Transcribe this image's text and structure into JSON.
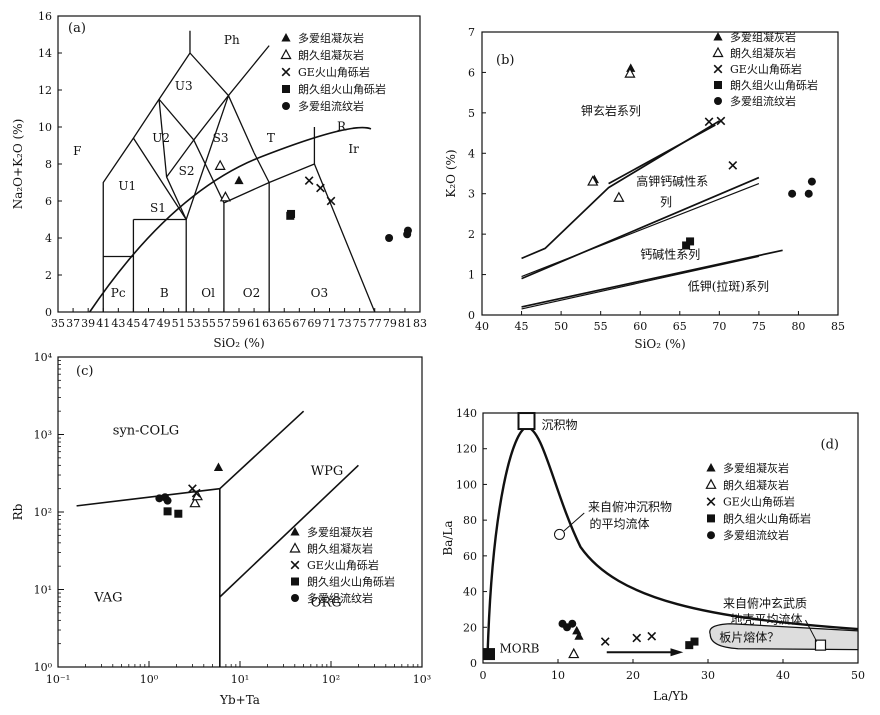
{
  "legend_entries": [
    "多爱组凝灰岩",
    "朗久组凝灰岩",
    "GE火山角砾岩",
    "朗久组火山角砾岩",
    "多爱组流纹岩"
  ],
  "colors": {
    "ink": "#111111",
    "slab_fill": "#dddddd"
  },
  "chart_data": [
    {
      "type": "scatter",
      "panel_label": "(a)",
      "xlabel": "SiO₂ (%)",
      "ylabel": "Na₂O+K₂O (%)",
      "xlim": [
        35,
        83
      ],
      "ylim": [
        0,
        16
      ],
      "xticks": [
        "35",
        "37",
        "39",
        "41",
        "43",
        "45",
        "47",
        "49",
        "51",
        "53",
        "55",
        "57",
        "59",
        "61",
        "63",
        "65",
        "67",
        "69",
        "71",
        "73",
        "75",
        "77",
        "79",
        "81",
        "83"
      ],
      "yticks": [
        "0",
        "2",
        "4",
        "6",
        "8",
        "10",
        "12",
        "14",
        "16"
      ],
      "field_labels": [
        "Ph",
        "U3",
        "U2",
        "S3",
        "F",
        "T",
        "R",
        "Ir",
        "S2",
        "U1",
        "S1",
        "Pc",
        "B",
        "Ol",
        "O2",
        "O3"
      ],
      "series": [
        {
          "name": "多爱组凝灰岩",
          "marker": "filled-triangle",
          "points": [
            [
              59.0,
              7.1
            ]
          ]
        },
        {
          "name": "朗久组凝灰岩",
          "marker": "open-triangle",
          "points": [
            [
              56.5,
              7.9
            ],
            [
              57.2,
              6.2
            ]
          ]
        },
        {
          "name": "GE火山角砾岩",
          "marker": "cross",
          "points": [
            [
              68.3,
              7.1
            ],
            [
              69.8,
              6.7
            ],
            [
              71.2,
              6.0
            ]
          ]
        },
        {
          "name": "朗久组火山角砾岩",
          "marker": "filled-square",
          "points": [
            [
              65.8,
              5.2
            ],
            [
              65.9,
              5.3
            ]
          ]
        },
        {
          "name": "多爱组流纹岩",
          "marker": "filled-circle",
          "points": [
            [
              78.9,
              4.0
            ],
            [
              81.3,
              4.2
            ],
            [
              81.4,
              4.4
            ]
          ]
        }
      ]
    },
    {
      "type": "scatter",
      "panel_label": "(b)",
      "xlabel": "SiO₂ (%)",
      "ylabel": "K₂O (%)",
      "xlim": [
        40,
        85
      ],
      "ylim": [
        0,
        7
      ],
      "xticks": [
        "40",
        "45",
        "50",
        "55",
        "60",
        "65",
        "70",
        "75",
        "80",
        "85"
      ],
      "yticks": [
        "0",
        "1",
        "2",
        "3",
        "4",
        "5",
        "6",
        "7"
      ],
      "field_labels": [
        "钾玄岩系列",
        "高钾钙碱性系",
        "列",
        "钙碱性系列",
        "低钾(拉斑)系列"
      ],
      "series": [
        {
          "name": "多爱组凝灰岩",
          "marker": "filled-triangle",
          "points": [
            [
              54.2,
              3.35
            ],
            [
              58.8,
              6.1
            ]
          ]
        },
        {
          "name": "朗久组凝灰岩",
          "marker": "open-triangle",
          "points": [
            [
              54.0,
              3.3
            ],
            [
              57.3,
              2.9
            ],
            [
              58.7,
              5.97
            ]
          ]
        },
        {
          "name": "GE火山角砾岩",
          "marker": "cross",
          "points": [
            [
              68.7,
              4.78
            ],
            [
              70.2,
              4.8
            ],
            [
              71.7,
              3.7
            ]
          ]
        },
        {
          "name": "朗久组火山角砾岩",
          "marker": "filled-square",
          "points": [
            [
              65.8,
              1.72
            ],
            [
              66.3,
              1.82
            ]
          ]
        },
        {
          "name": "多爱组流纹岩",
          "marker": "filled-circle",
          "points": [
            [
              79.2,
              3.0
            ],
            [
              81.3,
              3.0
            ],
            [
              81.7,
              3.3
            ]
          ]
        }
      ]
    },
    {
      "type": "scatter",
      "panel_label": "(c)",
      "xlabel": "Yb+Ta",
      "ylabel": "Rb",
      "xscale": "log",
      "yscale": "log",
      "xlim": [
        0.1,
        1000
      ],
      "ylim": [
        1,
        10000
      ],
      "xticks": [
        "10⁻¹",
        "10⁰",
        "10¹",
        "10²",
        "10³"
      ],
      "yticks": [
        "10⁰",
        "10¹",
        "10²",
        "10³",
        "10⁴"
      ],
      "field_labels": [
        "syn-COLG",
        "WPG",
        "VAG",
        "ORG"
      ],
      "series": [
        {
          "name": "多爱组凝灰岩",
          "marker": "filled-triangle",
          "points": [
            [
              5.8,
              375
            ]
          ]
        },
        {
          "name": "朗久组凝灰岩",
          "marker": "open-triangle",
          "points": [
            [
              3.2,
              130
            ],
            [
              3.4,
              160
            ]
          ]
        },
        {
          "name": "GE火山角砾岩",
          "marker": "cross",
          "points": [
            [
              3.0,
              200
            ],
            [
              3.3,
              175
            ]
          ]
        },
        {
          "name": "朗久组火山角砾岩",
          "marker": "filled-square",
          "points": [
            [
              1.6,
              102
            ],
            [
              2.1,
              95
            ]
          ]
        },
        {
          "name": "多爱组流纹岩",
          "marker": "filled-circle",
          "points": [
            [
              1.3,
              150
            ],
            [
              1.5,
              155
            ],
            [
              1.6,
              140
            ]
          ]
        }
      ]
    },
    {
      "type": "scatter",
      "panel_label": "(d)",
      "xlabel": "La/Yb",
      "ylabel": "Ba/La",
      "xlim": [
        0,
        50
      ],
      "ylim": [
        0,
        140
      ],
      "xticks": [
        "0",
        "10",
        "20",
        "30",
        "40",
        "50"
      ],
      "yticks": [
        "0",
        "20",
        "40",
        "60",
        "80",
        "100",
        "120",
        "140"
      ],
      "annotations": [
        "沉积物",
        "来自俯冲沉积物",
        "的平均流体",
        "MORB",
        "来自俯冲玄武质",
        "地壳平均流体",
        "板片熔体？"
      ],
      "series": [
        {
          "name": "多爱组凝灰岩",
          "marker": "filled-triangle",
          "points": [
            [
              12.5,
              18
            ],
            [
              12.8,
              15
            ]
          ]
        },
        {
          "name": "朗久组凝灰岩",
          "marker": "open-triangle",
          "points": [
            [
              12.1,
              5
            ]
          ]
        },
        {
          "name": "GE火山角砾岩",
          "marker": "cross",
          "points": [
            [
              16.3,
              12
            ],
            [
              20.5,
              14
            ],
            [
              22.5,
              15
            ]
          ]
        },
        {
          "name": "朗久组火山角砾岩",
          "marker": "filled-square",
          "points": [
            [
              27.5,
              10
            ],
            [
              28.2,
              12
            ]
          ]
        },
        {
          "name": "多爱组流纹岩",
          "marker": "filled-circle",
          "points": [
            [
              10.6,
              22
            ],
            [
              11.2,
              20
            ],
            [
              11.9,
              22
            ]
          ]
        }
      ]
    }
  ]
}
